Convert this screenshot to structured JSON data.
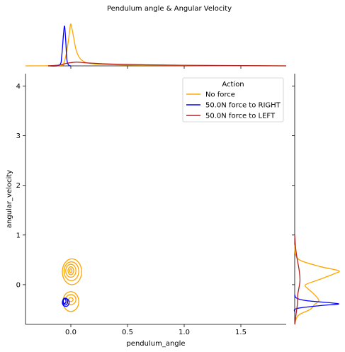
{
  "chart_data": {
    "type": "kde-joint",
    "title": "Pendulum angle & Angular Velocity",
    "xlabel": "pendulum_angle",
    "ylabel": "angular_velocity",
    "xlim": [
      -0.4,
      1.9
    ],
    "ylim": [
      -0.8,
      4.25
    ],
    "x_ticks": [
      0.0,
      0.5,
      1.0,
      1.5
    ],
    "x_tick_labels": [
      "0.0",
      "0.5",
      "1.0",
      "1.5"
    ],
    "y_ticks": [
      0,
      1,
      2,
      3,
      4
    ],
    "y_tick_labels": [
      "0",
      "1",
      "2",
      "3",
      "4"
    ],
    "legend": {
      "title": "Action",
      "position": "upper-right",
      "entries": [
        "No force",
        "50.0N force to RIGHT",
        "50.0N force to LEFT"
      ]
    },
    "series": [
      {
        "name": "No force",
        "color": "#ffa500",
        "contours": [
          {
            "cx": 0.0,
            "cy": 0.28,
            "rx": 0.01,
            "ry": 0.04
          },
          {
            "cx": 0.0,
            "cy": 0.28,
            "rx": 0.025,
            "ry": 0.08
          },
          {
            "cx": 0.0,
            "cy": 0.28,
            "rx": 0.045,
            "ry": 0.13
          },
          {
            "cx": 0.005,
            "cy": 0.27,
            "rx": 0.065,
            "ry": 0.19
          },
          {
            "cx": 0.01,
            "cy": 0.26,
            "rx": 0.085,
            "ry": 0.26
          },
          {
            "cx": 0.0,
            "cy": -0.3,
            "rx": 0.02,
            "ry": 0.04
          },
          {
            "cx": 0.0,
            "cy": -0.3,
            "rx": 0.045,
            "ry": 0.1
          },
          {
            "cx": 0.0,
            "cy": -0.34,
            "rx": 0.07,
            "ry": 0.2
          }
        ],
        "marginal_x": [
          [
            -0.4,
            0
          ],
          [
            -0.1,
            0.01
          ],
          [
            -0.06,
            0.08
          ],
          [
            -0.03,
            0.45
          ],
          [
            -0.01,
            0.85
          ],
          [
            0.0,
            1.0
          ],
          [
            0.02,
            0.75
          ],
          [
            0.05,
            0.35
          ],
          [
            0.1,
            0.13
          ],
          [
            0.2,
            0.05
          ],
          [
            0.5,
            0.02
          ],
          [
            1.0,
            0.01
          ],
          [
            1.9,
            0
          ]
        ],
        "marginal_y": [
          [
            -0.8,
            0
          ],
          [
            -0.62,
            0.08
          ],
          [
            -0.5,
            0.35
          ],
          [
            -0.4,
            0.45
          ],
          [
            -0.32,
            0.55
          ],
          [
            -0.2,
            0.45
          ],
          [
            -0.08,
            0.3
          ],
          [
            0.0,
            0.25
          ],
          [
            0.1,
            0.55
          ],
          [
            0.22,
            0.9
          ],
          [
            0.28,
            1.0
          ],
          [
            0.36,
            0.6
          ],
          [
            0.48,
            0.15
          ],
          [
            0.6,
            0.02
          ],
          [
            0.8,
            0
          ]
        ]
      },
      {
        "name": "50.0N force to RIGHT",
        "color": "#0000ff",
        "contours": [
          {
            "cx": -0.055,
            "cy": -0.33,
            "rx": 0.012,
            "ry": 0.05
          },
          {
            "cx": -0.05,
            "cy": -0.34,
            "rx": 0.022,
            "ry": 0.07
          },
          {
            "cx": -0.045,
            "cy": -0.36,
            "rx": 0.03,
            "ry": 0.08
          }
        ],
        "marginal_x": [
          [
            -0.2,
            0
          ],
          [
            -0.1,
            0.02
          ],
          [
            -0.08,
            0.25
          ],
          [
            -0.065,
            0.75
          ],
          [
            -0.055,
            0.95
          ],
          [
            -0.045,
            0.6
          ],
          [
            -0.035,
            0.15
          ],
          [
            -0.02,
            0.02
          ],
          [
            0.0,
            0
          ]
        ],
        "marginal_y": [
          [
            -0.55,
            0
          ],
          [
            -0.48,
            0.05
          ],
          [
            -0.42,
            0.6
          ],
          [
            -0.39,
            1.0
          ],
          [
            -0.36,
            0.75
          ],
          [
            -0.32,
            0.25
          ],
          [
            -0.27,
            0.04
          ],
          [
            -0.2,
            0
          ]
        ]
      },
      {
        "name": "50.0N force to LEFT",
        "color": "#b22222",
        "contours": [],
        "marginal_x": [
          [
            -0.2,
            0
          ],
          [
            -0.1,
            0.02
          ],
          [
            -0.04,
            0.06
          ],
          [
            0.05,
            0.09
          ],
          [
            0.15,
            0.07
          ],
          [
            0.4,
            0.04
          ],
          [
            0.8,
            0.02
          ],
          [
            1.2,
            0.01
          ],
          [
            1.9,
            0
          ]
        ],
        "marginal_y": [
          [
            -0.8,
            0
          ],
          [
            -0.6,
            0.03
          ],
          [
            -0.4,
            0.06
          ],
          [
            -0.2,
            0.07
          ],
          [
            -0.05,
            0.1
          ],
          [
            0.1,
            0.12
          ],
          [
            0.3,
            0.1
          ],
          [
            0.55,
            0.05
          ],
          [
            0.75,
            0.02
          ],
          [
            1.0,
            0
          ]
        ]
      }
    ]
  }
}
